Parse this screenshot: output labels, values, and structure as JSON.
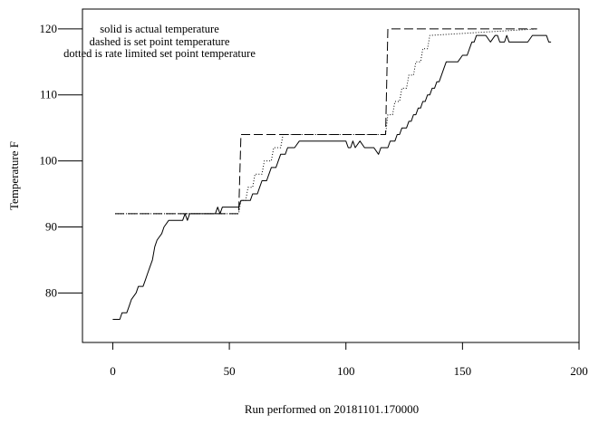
{
  "chart_data": {
    "type": "line",
    "title": "",
    "xlabel": "Run performed on 20181101.170000",
    "ylabel": "Temperature F",
    "xlim": [
      -13,
      200
    ],
    "ylim": [
      72.5,
      123
    ],
    "x_ticks": [
      0,
      50,
      100,
      150,
      200
    ],
    "y_ticks": [
      80,
      90,
      100,
      110,
      120
    ],
    "grid": false,
    "legend_notes": [
      "solid is actual temperature",
      "dashed is set point temperature",
      "dotted is rate limited set point temperature"
    ],
    "series": [
      {
        "style": "solid",
        "x": [
          0,
          3,
          4,
          6,
          7,
          8,
          10,
          11,
          13,
          14,
          15,
          16,
          17,
          18,
          19,
          21,
          22,
          24,
          25,
          26,
          27,
          28,
          30,
          31,
          32,
          33,
          34,
          36,
          38,
          40,
          42,
          44,
          45,
          46,
          47,
          48,
          50,
          52,
          54,
          55,
          56,
          58,
          59,
          60,
          62,
          63,
          64,
          66,
          67,
          68,
          70,
          71,
          72,
          74,
          75,
          76,
          78,
          80,
          82,
          84,
          86,
          88,
          90,
          92,
          94,
          96,
          98,
          100,
          101,
          102,
          103,
          104,
          106,
          108,
          110,
          112,
          114,
          115,
          116,
          118,
          119,
          120,
          121,
          122,
          123,
          124,
          125,
          126,
          127,
          128,
          129,
          130,
          131,
          132,
          133,
          134,
          135,
          136,
          137,
          138,
          139,
          140,
          141,
          142,
          143,
          144,
          145,
          146,
          148,
          150,
          152,
          153,
          154,
          155,
          156,
          158,
          159,
          160,
          162,
          164,
          165,
          166,
          168,
          169,
          170,
          172,
          174,
          176,
          178,
          180,
          182,
          184,
          186,
          187,
          188
        ],
        "y": [
          76,
          76,
          77,
          77,
          78,
          79,
          80,
          81,
          81,
          82,
          83,
          84,
          85,
          87,
          88,
          89,
          90,
          91,
          91,
          91,
          91,
          91,
          91,
          92,
          91,
          92,
          92,
          92,
          92,
          92,
          92,
          92,
          93,
          92,
          93,
          93,
          93,
          93,
          93,
          94,
          94,
          94,
          94,
          95,
          95,
          96,
          97,
          97,
          98,
          99,
          99,
          100,
          101,
          101,
          102,
          102,
          102,
          103,
          103,
          103,
          103,
          103,
          103,
          103,
          103,
          103,
          103,
          103,
          102,
          102,
          103,
          102,
          103,
          102,
          102,
          102,
          101,
          102,
          102,
          102,
          103,
          103,
          103,
          104,
          104,
          105,
          105,
          105,
          106,
          106,
          107,
          107,
          108,
          108,
          109,
          109,
          110,
          110,
          111,
          111,
          112,
          112,
          113,
          114,
          115,
          115,
          115,
          115,
          115,
          116,
          116,
          117,
          118,
          118,
          119,
          119,
          119,
          119,
          118,
          119,
          119,
          118,
          118,
          119,
          118,
          118,
          118,
          118,
          118,
          119,
          119,
          119,
          119,
          118,
          118
        ]
      },
      {
        "style": "dashed",
        "x": [
          1,
          54,
          55,
          117,
          118,
          182
        ],
        "y": [
          92,
          92,
          104,
          104,
          120,
          120
        ]
      },
      {
        "style": "dotted",
        "x": [
          1,
          54,
          55,
          57,
          58,
          60,
          61,
          64,
          65,
          68,
          69,
          72,
          73,
          76,
          77,
          117,
          118,
          120,
          121,
          123,
          124,
          126,
          127,
          129,
          130,
          132,
          133,
          135,
          136,
          182
        ],
        "y": [
          92,
          92,
          94,
          94,
          96,
          96,
          98,
          98,
          100,
          100,
          102,
          102,
          104,
          104,
          104,
          104,
          107,
          107,
          109,
          109,
          111,
          111,
          113,
          113,
          115,
          115,
          117,
          117,
          119,
          120
        ]
      }
    ]
  }
}
